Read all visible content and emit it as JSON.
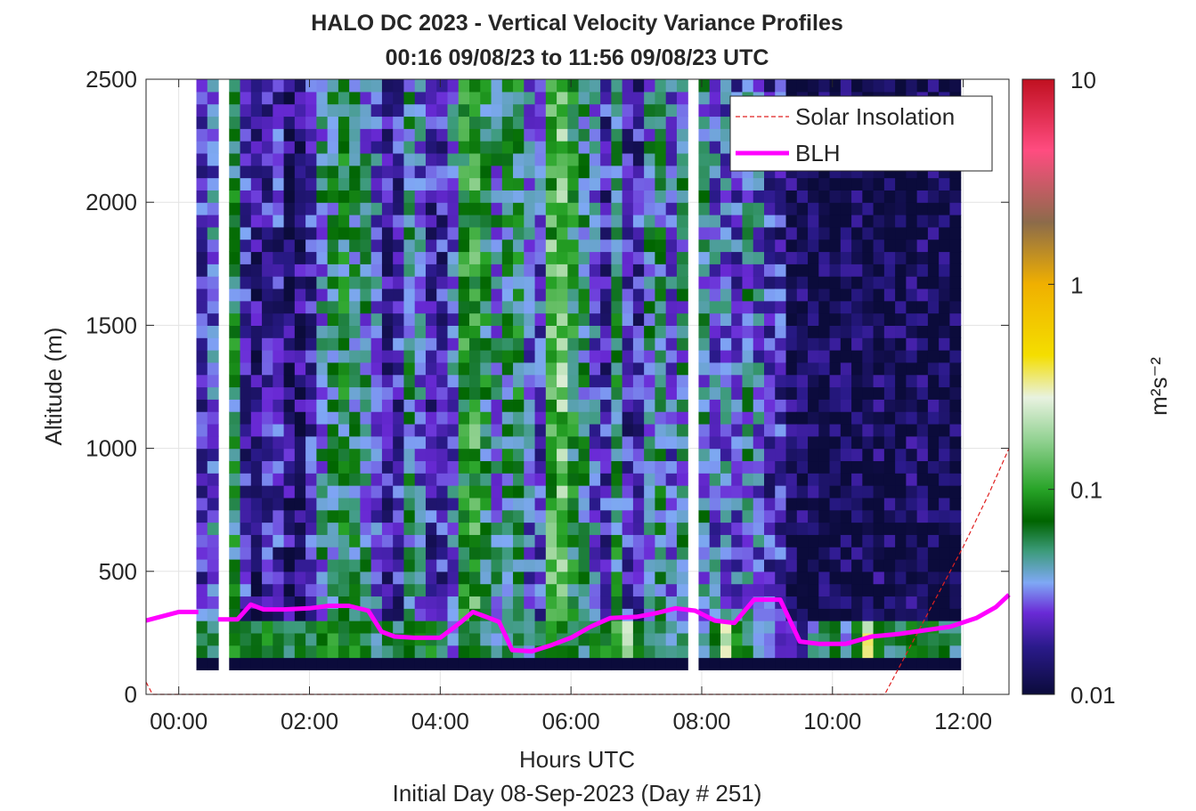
{
  "chart_data": {
    "type": "heatmap",
    "title_line1": "HALO DC 2023 - Vertical Velocity Variance Profiles",
    "title_line2": "00:16 09/08/23 to 11:56 09/08/23  UTC",
    "xlabel": "Hours UTC",
    "subxlabel": "Initial Day 08-Sep-2023 (Day # 251)",
    "ylabel": "Altitude (m)",
    "xlim_hours": [
      -0.5,
      12.7
    ],
    "ylim_m": [
      0,
      2500
    ],
    "xticks": [
      {
        "v": 0,
        "label": "00:00"
      },
      {
        "v": 2,
        "label": "02:00"
      },
      {
        "v": 4,
        "label": "04:00"
      },
      {
        "v": 6,
        "label": "06:00"
      },
      {
        "v": 8,
        "label": "08:00"
      },
      {
        "v": 10,
        "label": "10:00"
      },
      {
        "v": 12,
        "label": "12:00"
      }
    ],
    "yticks": [
      {
        "v": 0,
        "label": "0"
      },
      {
        "v": 500,
        "label": "500"
      },
      {
        "v": 1000,
        "label": "1000"
      },
      {
        "v": 1500,
        "label": "1500"
      },
      {
        "v": 2000,
        "label": "2000"
      },
      {
        "v": 2500,
        "label": "2500"
      }
    ],
    "grid": true,
    "legend_position": "top-right",
    "colorbar": {
      "label": "m²s⁻²",
      "scale": "log",
      "range": [
        0.01,
        10
      ],
      "ticks": [
        {
          "v": 0.01,
          "label": "0.01"
        },
        {
          "v": 0.1,
          "label": "0.1"
        },
        {
          "v": 1,
          "label": "1"
        },
        {
          "v": 10,
          "label": "10"
        }
      ],
      "stops": [
        {
          "v": 0.01,
          "color": "#0b0b3b"
        },
        {
          "v": 0.017,
          "color": "#2a1a8a"
        },
        {
          "v": 0.025,
          "color": "#6a2ad6"
        },
        {
          "v": 0.035,
          "color": "#7fa8f5"
        },
        {
          "v": 0.05,
          "color": "#3c9b7a"
        },
        {
          "v": 0.07,
          "color": "#006400"
        },
        {
          "v": 0.1,
          "color": "#28a428"
        },
        {
          "v": 0.17,
          "color": "#8ed08e"
        },
        {
          "v": 0.28,
          "color": "#e8f2e0"
        },
        {
          "v": 0.45,
          "color": "#f4de00"
        },
        {
          "v": 1.0,
          "color": "#f0b000"
        },
        {
          "v": 2.0,
          "color": "#8c6b4a"
        },
        {
          "v": 4.5,
          "color": "#ff4c80"
        },
        {
          "v": 10,
          "color": "#c01020"
        }
      ]
    },
    "heatmap": {
      "t_start": 0.27,
      "t_step": 0.167,
      "n_columns": 70,
      "z_start": 100,
      "z_step": 50,
      "n_rows": 48,
      "missing_columns": [
        2,
        45
      ],
      "column_top_m": [
        2500,
        2500,
        2500,
        2500,
        2500,
        2500,
        2500,
        2500,
        2500,
        2500,
        2500,
        2500,
        2500,
        2500,
        2500,
        2500,
        2500,
        2500,
        2500,
        2500,
        2500,
        2500,
        2500,
        2500,
        2500,
        2500,
        2500,
        2500,
        2500,
        2500,
        2500,
        2500,
        2500,
        2500,
        2500,
        2500,
        2500,
        2500,
        2500,
        2500,
        2500,
        2500,
        2500,
        2500,
        2500,
        2500,
        2500,
        2500,
        2500,
        2500,
        2500,
        2500,
        2500,
        2500,
        2500,
        2500,
        2500,
        2500,
        2500,
        2500,
        2500,
        2500,
        2500,
        2500,
        2500,
        2500,
        2500,
        2500,
        2500,
        2500
      ],
      "column_profile_peak": [
        0.02,
        0.03,
        0.0,
        0.06,
        0.02,
        0.015,
        0.02,
        0.02,
        0.015,
        0.015,
        0.02,
        0.04,
        0.05,
        0.06,
        0.05,
        0.04,
        0.03,
        0.02,
        0.02,
        0.05,
        0.03,
        0.02,
        0.02,
        0.03,
        0.08,
        0.1,
        0.06,
        0.04,
        0.05,
        0.06,
        0.03,
        0.025,
        0.12,
        0.15,
        0.07,
        0.05,
        0.03,
        0.02,
        0.06,
        0.02,
        0.02,
        0.04,
        0.05,
        0.03,
        0.04,
        0.0,
        0.04,
        0.03,
        0.03,
        0.025,
        0.04,
        0.03,
        0.02,
        0.02,
        0.012,
        0.012,
        0.011,
        0.011,
        0.011,
        0.011,
        0.011,
        0.011,
        0.012,
        0.011,
        0.011,
        0.012,
        0.012,
        0.011,
        0.011,
        0.011
      ],
      "column_surface_peak": [
        0.06,
        0.06,
        0.0,
        0.08,
        0.07,
        0.06,
        0.08,
        0.06,
        0.05,
        0.07,
        0.06,
        0.08,
        0.09,
        0.07,
        0.08,
        0.06,
        0.05,
        0.06,
        0.05,
        0.06,
        0.07,
        0.08,
        0.05,
        0.03,
        0.06,
        0.07,
        0.05,
        0.04,
        0.06,
        0.06,
        0.04,
        0.05,
        0.09,
        0.06,
        0.06,
        0.05,
        0.07,
        0.08,
        0.12,
        0.2,
        0.08,
        0.05,
        0.06,
        0.04,
        0.05,
        0.0,
        0.04,
        0.07,
        0.25,
        0.08,
        0.06,
        0.03,
        0.04,
        0.02,
        0.02,
        0.02,
        0.04,
        0.05,
        0.06,
        0.04,
        0.07,
        0.28,
        0.07,
        0.06,
        0.06,
        0.07,
        0.08,
        0.07,
        0.06,
        0.05
      ],
      "bottom_row_value": 0.01
    },
    "series": [
      {
        "name": "Solar Insolation",
        "style": "dashed",
        "color": "#e02020",
        "x": [
          -0.5,
          -0.4,
          10.8,
          11.2,
          11.6,
          12.0,
          12.4,
          12.7
        ],
        "y": [
          50,
          0,
          0,
          200,
          400,
          600,
          820,
          1000
        ]
      },
      {
        "name": "BLH",
        "style": "solid",
        "color": "#ff00ff",
        "segments": [
          {
            "x": [
              -0.5,
              0.0,
              0.3
            ],
            "y": [
              300,
              335,
              335
            ]
          },
          {
            "x": [
              0.6,
              0.9,
              1.1,
              1.3,
              1.6,
              2.0,
              2.3,
              2.6,
              2.9,
              3.1,
              3.3,
              3.6,
              4.0,
              4.3,
              4.5,
              4.7,
              4.9,
              5.1,
              5.4,
              5.7,
              6.0,
              6.3,
              6.6,
              7.0,
              7.3,
              7.6,
              7.9,
              8.2,
              8.5,
              8.8,
              9.2,
              9.5,
              9.8,
              10.2,
              10.6,
              11.0,
              11.4,
              11.8,
              12.2,
              12.5,
              12.7
            ],
            "y": [
              305,
              305,
              365,
              345,
              345,
              350,
              360,
              360,
              340,
              255,
              235,
              230,
              230,
              290,
              335,
              315,
              295,
              180,
              175,
              200,
              230,
              275,
              310,
              315,
              330,
              350,
              340,
              300,
              290,
              385,
              385,
              215,
              205,
              205,
              235,
              245,
              260,
              275,
              310,
              355,
              405
            ]
          }
        ]
      }
    ]
  },
  "colors": {
    "axes_frame": "#262626",
    "grid": "#e0e0e0",
    "background": "#ffffff"
  }
}
